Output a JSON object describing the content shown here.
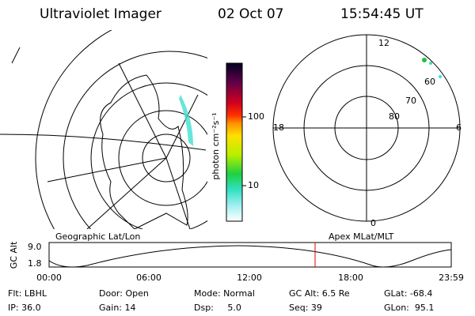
{
  "header": {
    "title": "Ultraviolet Imager",
    "date": "02 Oct 07",
    "time": "15:54:45 UT"
  },
  "colorbar": {
    "label": "photon cm⁻²s⁻¹",
    "ticks": [
      "100",
      "10"
    ]
  },
  "polar_plot": {
    "mlt_labels": [
      "12",
      "18",
      "6",
      "0"
    ],
    "mlat_labels": [
      "60",
      "70",
      "80"
    ]
  },
  "orbit_plot": {
    "left_label": "Geographic Lat/Lon",
    "right_label": "Apex MLat/MLT",
    "y_label": "GC Alt",
    "y_ticks": [
      "9.0",
      "1.8"
    ],
    "x_ticks": [
      "00:00",
      "06:00",
      "12:00",
      "18:00",
      "23:59"
    ]
  },
  "status": {
    "rows": [
      [
        "Flt: LBHL",
        "Door: Open",
        "Mode: Normal",
        "GC Alt: 6.5 Re",
        "GLat: -68.4"
      ],
      [
        "IP: 36.0",
        "Gain: 14",
        "Dsp:     5.0",
        "Seq: 39",
        "GLon:  95.1"
      ]
    ]
  }
}
